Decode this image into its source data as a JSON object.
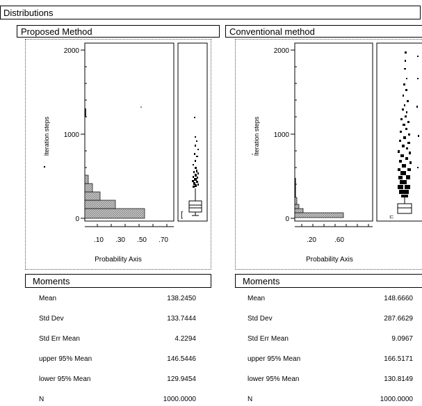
{
  "window": {
    "title": "Distributions"
  },
  "panels": [
    {
      "title": "Proposed Method",
      "y_label": "Iteration steps",
      "y_ticks": [
        "2000",
        "1000",
        "0"
      ],
      "x_ticks": [
        ".10",
        ".30",
        ".50",
        ".70"
      ],
      "x_label": "Probability Axis",
      "moments_title": "Moments",
      "moments": [
        {
          "label": "Mean",
          "value": "138.2450"
        },
        {
          "label": "Std Dev",
          "value": "133.7444"
        },
        {
          "label": "Std Err Mean",
          "value": "4.2294"
        },
        {
          "label": "upper 95% Mean",
          "value": "146.5446"
        },
        {
          "label": "lower 95% Mean",
          "value": "129.9454"
        },
        {
          "label": "N",
          "value": "1000.0000"
        }
      ]
    },
    {
      "title": "Conventional method",
      "y_label": "Iteration steps",
      "y_ticks": [
        "2000",
        "1000",
        "0"
      ],
      "x_ticks": [
        ".20",
        ".60"
      ],
      "x_label": "Probability Axis",
      "moments_title": "Moments",
      "moments": [
        {
          "label": "Mean",
          "value": "148.6660"
        },
        {
          "label": "Std Dev",
          "value": "287.6629"
        },
        {
          "label": "Std Err Mean",
          "value": "9.0967"
        },
        {
          "label": "upper 95% Mean",
          "value": "166.5171"
        },
        {
          "label": "lower 95% Mean",
          "value": "130.8149"
        },
        {
          "label": "N",
          "value": "1000.0000"
        }
      ]
    }
  ]
}
